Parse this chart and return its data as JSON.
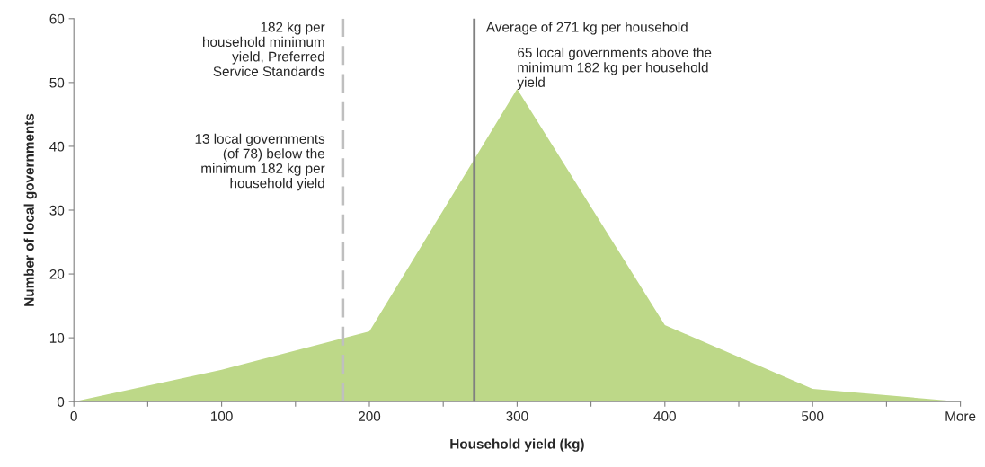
{
  "chart_data": {
    "type": "area",
    "xlabel": "Household yield (kg)",
    "ylabel": "Number of local governments",
    "x": [
      0,
      100,
      200,
      300,
      400,
      500,
      600
    ],
    "series": [
      {
        "color": "#bdd888",
        "values": [
          0,
          5,
          11,
          49,
          12,
          2,
          0
        ]
      }
    ],
    "xlim": [
      0,
      600
    ],
    "xticks": [
      0,
      {
        "value": 50,
        "label": null
      },
      100,
      {
        "value": 150,
        "label": null
      },
      200,
      {
        "value": 250,
        "label": null
      },
      300,
      {
        "value": 350,
        "label": null
      },
      400,
      {
        "value": 450,
        "label": null
      },
      500,
      {
        "value": 550,
        "label": null
      },
      {
        "value": 600,
        "label": "More"
      }
    ],
    "ylim": [
      0,
      60
    ],
    "yticks": [
      0,
      10,
      20,
      30,
      40,
      50,
      60
    ],
    "ref_lines": [
      {
        "axis": "x",
        "value": 182,
        "label": "182 kg per\nhousehold minimum\nyield, Preferred\nService Standards",
        "color": "#bfbfbf",
        "line_style": "dashed"
      },
      {
        "axis": "x",
        "value": 271,
        "label": "Average of 271 kg per household",
        "color": "#808080",
        "line_style": "solid"
      }
    ],
    "annotations": [
      "13 local governments\n(of 78) below the\nminimum 182 kg per\nhousehold yield",
      "65 local governments above the\nminimum 182 kg per household\nyield"
    ],
    "grid": false,
    "legend": false
  }
}
